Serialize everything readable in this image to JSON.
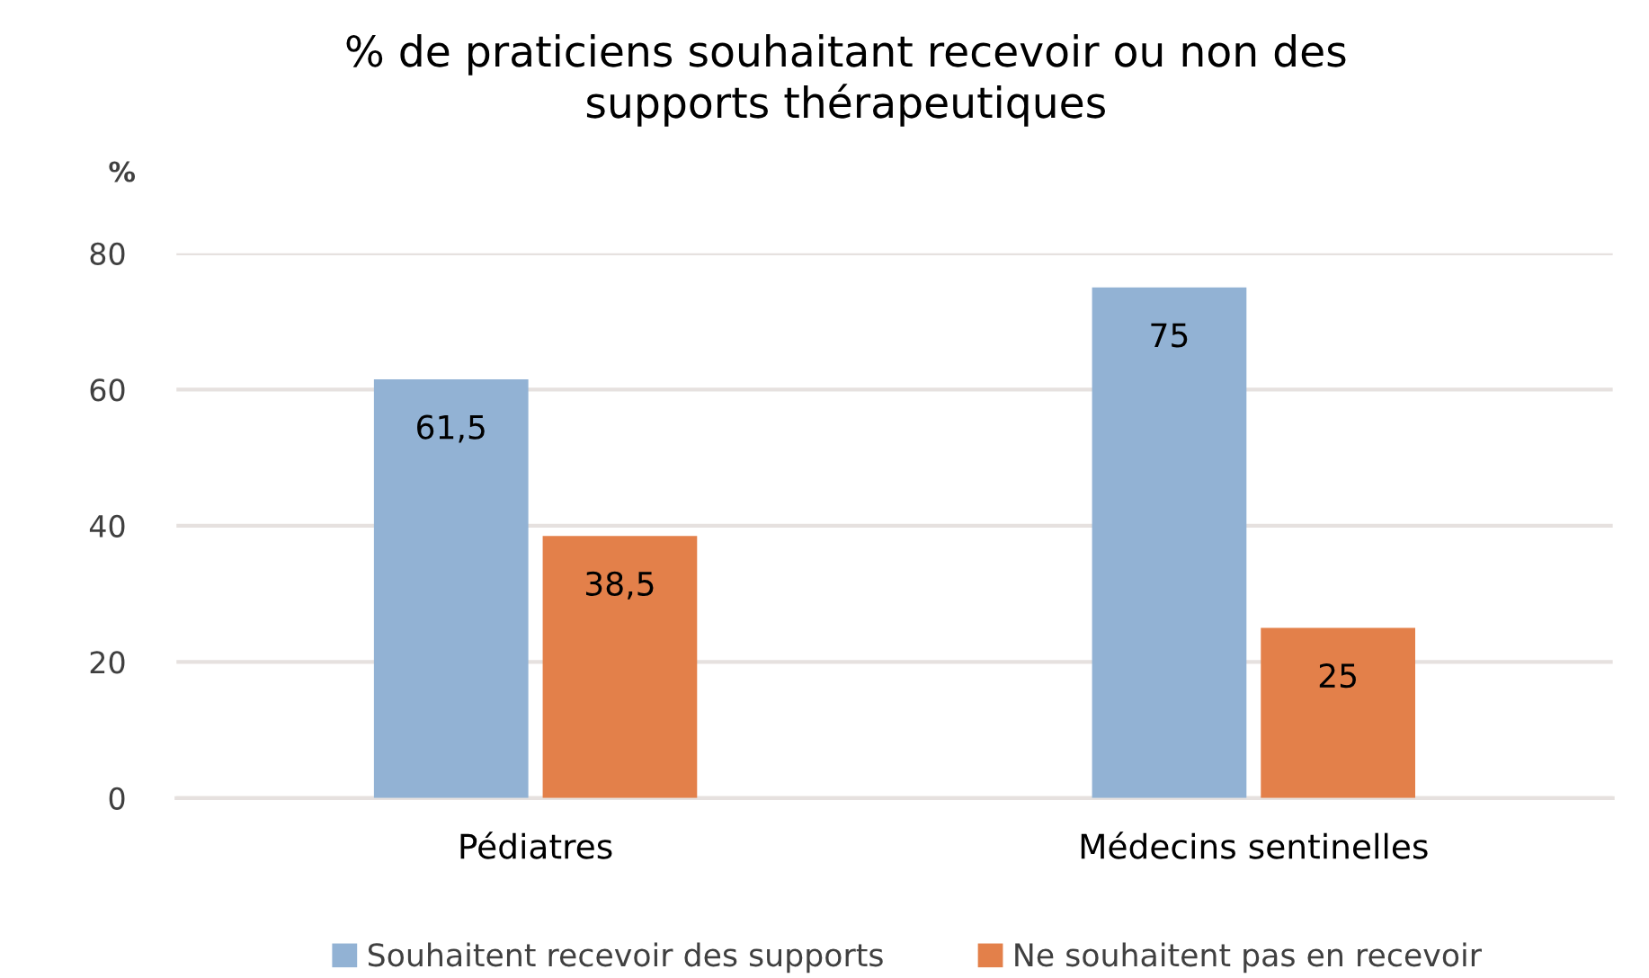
{
  "chart_data": {
    "type": "bar",
    "title": "% de praticiens souhaitant recevoir ou non des\nsupports thérapeutiques",
    "ylabel": "%",
    "categories": [
      "Pédiatres",
      "Médecins sentinelles"
    ],
    "series": [
      {
        "name": "Souhaitent recevoir des supports",
        "color": "#92b2d4",
        "values": [
          61.5,
          75
        ],
        "value_labels": [
          "61,5",
          "75"
        ]
      },
      {
        "name": "Ne souhaitent pas en recevoir",
        "color": "#e3804a",
        "values": [
          38.5,
          25
        ],
        "value_labels": [
          "38,5",
          "25"
        ]
      }
    ],
    "ylim": [
      0,
      80
    ],
    "yticks": [
      0,
      20,
      40,
      60,
      80
    ],
    "grid": "y",
    "legend": "bottom"
  }
}
